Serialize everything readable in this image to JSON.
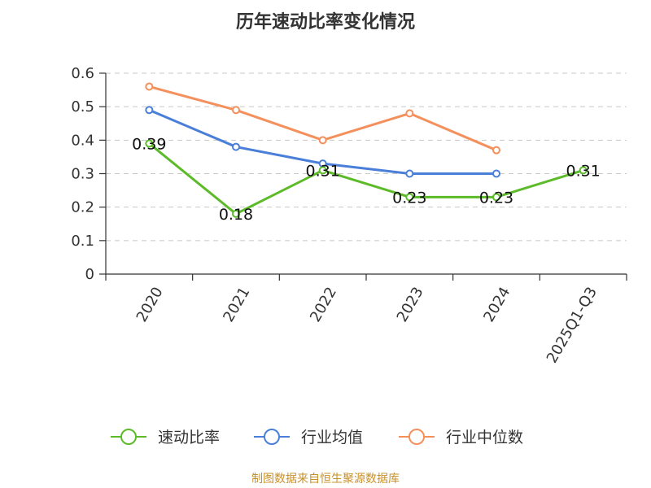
{
  "chart_data": {
    "type": "line",
    "title": "历年速动比率变化情况",
    "categories": [
      "2020",
      "2021",
      "2022",
      "2023",
      "2024",
      "2025Q1-Q3"
    ],
    "ylim": [
      0,
      0.6
    ],
    "yticks": [
      "0",
      "0.1",
      "0.2",
      "0.3",
      "0.4",
      "0.5",
      "0.6"
    ],
    "grid": true,
    "legend_position": "bottom",
    "series": [
      {
        "name": "速动比率",
        "color": "#5dbb2a",
        "values": [
          0.39,
          0.18,
          0.31,
          0.23,
          0.23,
          0.31
        ],
        "show_labels": true
      },
      {
        "name": "行业均值",
        "color": "#4a7fd9",
        "values": [
          0.49,
          0.38,
          0.33,
          0.3,
          0.3,
          null
        ],
        "show_labels": false
      },
      {
        "name": "行业中位数",
        "color": "#f4905c",
        "values": [
          0.56,
          0.49,
          0.4,
          0.48,
          0.37,
          null
        ],
        "show_labels": false
      }
    ],
    "data_labels": [
      "0.39",
      "0.18",
      "0.31",
      "0.23",
      "0.23",
      "0.31"
    ]
  },
  "footer": {
    "source": "制图数据来自恒生聚源数据库"
  }
}
